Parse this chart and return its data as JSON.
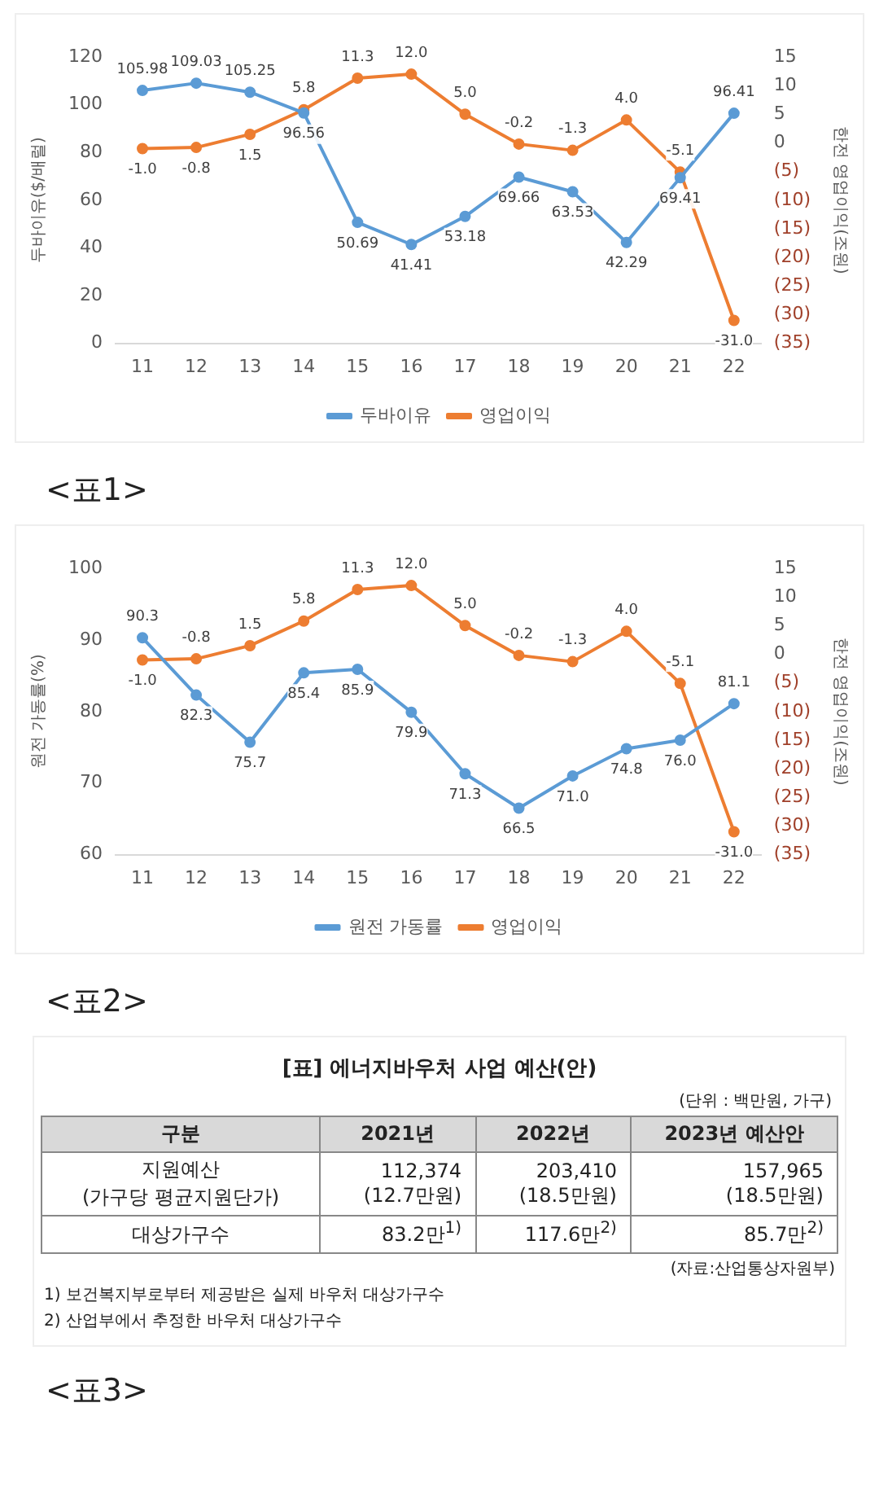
{
  "chart_data": [
    {
      "type": "line",
      "categories": [
        "11",
        "12",
        "13",
        "14",
        "15",
        "16",
        "17",
        "18",
        "19",
        "20",
        "21",
        "22"
      ],
      "ylabel": "두바이유($/배럴)",
      "y2label": "한전 영업이익(조원)",
      "ylim": [
        0,
        120
      ],
      "yticks": [
        0,
        20,
        40,
        60,
        80,
        100,
        120
      ],
      "y2lim": [
        -35,
        15
      ],
      "y2ticks": [
        {
          "value": -35,
          "label": "(35)"
        },
        {
          "value": -30,
          "label": "(30)"
        },
        {
          "value": -25,
          "label": "(25)"
        },
        {
          "value": -20,
          "label": "(20)"
        },
        {
          "value": -15,
          "label": "(15)"
        },
        {
          "value": -10,
          "label": "(10)"
        },
        {
          "value": -5,
          "label": "(5)"
        },
        0,
        5,
        10,
        15
      ],
      "grid": false,
      "legend": "bottom",
      "marker": "circle",
      "annotations": [
        "<표1>"
      ],
      "series": [
        {
          "name": "두바이유",
          "color": "#5b9bd5",
          "values": [
            105.98,
            109.03,
            105.25,
            96.56,
            50.69,
            41.41,
            53.18,
            69.66,
            63.53,
            42.29,
            69.41,
            96.41
          ],
          "value_labels": [
            "105.98",
            "109.03",
            "105.25",
            "96.56",
            "50.69",
            "41.41",
            "53.18",
            "69.66",
            "63.53",
            "42.29",
            "69.41",
            "96.41"
          ]
        },
        {
          "name": "영업이익",
          "color": "#ed7d31",
          "axis": "y2",
          "values": [
            -1.0,
            -0.8,
            1.5,
            5.8,
            11.3,
            12.0,
            5.0,
            -0.2,
            -1.3,
            4.0,
            -5.1,
            -31.0
          ],
          "value_labels": [
            "-1.0",
            "-0.8",
            "1.5",
            "5.8",
            "11.3",
            "12.0",
            "5.0",
            "-0.2",
            "-1.3",
            "4.0",
            "-5.1",
            "-31.0"
          ]
        }
      ]
    },
    {
      "type": "line",
      "categories": [
        "11",
        "12",
        "13",
        "14",
        "15",
        "16",
        "17",
        "18",
        "19",
        "20",
        "21",
        "22"
      ],
      "ylabel": "원전 가동률(%)",
      "y2label": "한전 영업이익(조원)",
      "ylim": [
        60,
        100
      ],
      "yticks": [
        60,
        70,
        80,
        90,
        100
      ],
      "y2lim": [
        -35,
        15
      ],
      "y2ticks": [
        {
          "value": -35,
          "label": "(35)"
        },
        {
          "value": -30,
          "label": "(30)"
        },
        {
          "value": -25,
          "label": "(25)"
        },
        {
          "value": -20,
          "label": "(20)"
        },
        {
          "value": -15,
          "label": "(15)"
        },
        {
          "value": -10,
          "label": "(10)"
        },
        {
          "value": -5,
          "label": "(5)"
        },
        0,
        5,
        10,
        15
      ],
      "grid": false,
      "legend": "bottom",
      "marker": "circle",
      "annotations": [
        "<표2>"
      ],
      "series": [
        {
          "name": "원전 가동률",
          "color": "#5b9bd5",
          "values": [
            90.3,
            82.3,
            75.7,
            85.4,
            85.9,
            79.9,
            71.3,
            66.5,
            71.0,
            74.8,
            76.0,
            81.1
          ],
          "value_labels": [
            "90.3",
            "82.3",
            "75.7",
            "85.4",
            "85.9",
            "79.9",
            "71.3",
            "66.5",
            "71.0",
            "74.8",
            "76.0",
            "81.1"
          ]
        },
        {
          "name": "영업이익",
          "color": "#ed7d31",
          "axis": "y2",
          "values": [
            -1.0,
            -0.8,
            1.5,
            5.8,
            11.3,
            12.0,
            5.0,
            -0.2,
            -1.3,
            4.0,
            -5.1,
            -31.0
          ],
          "value_labels": [
            "-1.0",
            "-0.8",
            "1.5",
            "5.8",
            "11.3",
            "12.0",
            "5.0",
            "-0.2",
            "-1.3",
            "4.0",
            "-5.1",
            "-31.0"
          ]
        }
      ]
    },
    {
      "type": "other",
      "title": "[표] 에너지바우처 사업 예산(안)",
      "subtitle": "(단위 : 백만원, 가구)",
      "categories": [
        "구분",
        "2021년",
        "2022년",
        "2023년 예산안"
      ],
      "y_categories": [
        "지원예산\n(가구당 평균지원단가)",
        "대상가구수"
      ],
      "cell_labels": [
        [
          "112,374\n(12.7만원)",
          "203,410\n(18.5만원)",
          "157,965\n(18.5만원)"
        ],
        [
          "83.2만$^{1)}$",
          "117.6만$^{2)}$",
          "85.7만$^{2)}$"
        ]
      ],
      "annotations": [
        "(자료:산업통상자원부)",
        "1) 보건복지부로부터 제공받은 실제 바우처 대상가구수",
        "2) 산업부에서 추정한 바우처 대상가구수",
        "<표3>"
      ]
    }
  ]
}
